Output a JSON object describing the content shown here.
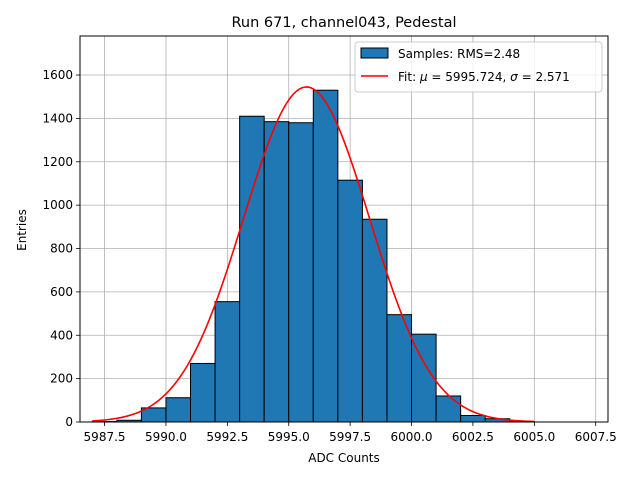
{
  "chart_data": {
    "type": "bar",
    "title": "Run 671, channel043, Pedestal",
    "xlabel": "ADC Counts",
    "ylabel": "Entries",
    "xlim": [
      5986.5,
      6008.0
    ],
    "ylim": [
      0,
      1780
    ],
    "grid": true,
    "legend_position": "top-right",
    "x_ticks": [
      5987.5,
      5990.0,
      5992.5,
      5995.0,
      5997.5,
      6000.0,
      6002.5,
      6005.0,
      6007.5
    ],
    "x_tick_labels": [
      "5987.5",
      "5990.0",
      "5992.5",
      "5995.0",
      "5997.5",
      "6000.0",
      "6002.5",
      "6005.0",
      "6007.5"
    ],
    "y_ticks": [
      0,
      200,
      400,
      600,
      800,
      1000,
      1200,
      1400,
      1600
    ],
    "y_tick_labels": [
      "0",
      "200",
      "400",
      "600",
      "800",
      "1000",
      "1200",
      "1400",
      "1600"
    ],
    "histogram": {
      "name": "Samples: RMS=2.48",
      "color": "#1f77b4",
      "edge_color": "#000000",
      "bin_edges": [
        5987.0,
        5988.0,
        5989.0,
        5990.0,
        5991.0,
        5992.0,
        5993.0,
        5994.0,
        5995.0,
        5996.0,
        5997.0,
        5998.0,
        5999.0,
        6000.0,
        6001.0,
        6002.0,
        6003.0,
        6004.0,
        6005.0,
        6006.0,
        6007.0
      ],
      "counts": [
        2,
        8,
        65,
        112,
        270,
        555,
        1410,
        1385,
        1380,
        1530,
        1115,
        935,
        495,
        405,
        120,
        30,
        15,
        2,
        0,
        0
      ]
    },
    "fit": {
      "name": "Fit: μ = 5995.724, σ = 2.571",
      "color": "#ff0000",
      "mu": 5995.724,
      "sigma": 2.571,
      "amplitude": 1545,
      "x_range": [
        5987.0,
        6005.0
      ]
    },
    "legend": [
      {
        "label": "Samples: RMS=2.48",
        "kind": "patch"
      },
      {
        "label": "Fit: ",
        "mu_symbol": "μ",
        "mu_text": " = 5995.724, ",
        "sigma_symbol": "σ",
        "sigma_text": " = 2.571",
        "kind": "line"
      }
    ]
  }
}
